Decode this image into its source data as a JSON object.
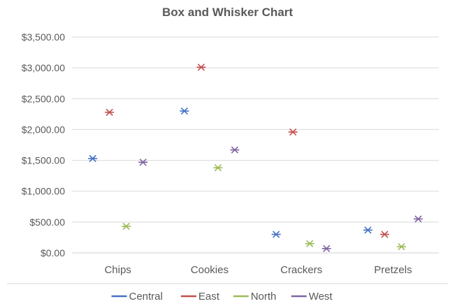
{
  "chart_data": {
    "type": "scatter",
    "title": "Box and Whisker Chart",
    "categories": [
      "Chips",
      "Cookies",
      "Crackers",
      "Pretzels"
    ],
    "ylim": [
      0,
      3500
    ],
    "yticks": [
      0,
      500,
      1000,
      1500,
      2000,
      2500,
      3000,
      3500
    ],
    "ytick_labels": [
      "$0.00",
      "$500.00",
      "$1,000.00",
      "$1,500.00",
      "$2,000.00",
      "$2,500.00",
      "$3,000.00",
      "$3,500.00"
    ],
    "grid": true,
    "legend_position": "bottom",
    "marker": "asterisk",
    "series": [
      {
        "name": "Central",
        "color": "#4472C4",
        "values": [
          1530,
          2300,
          300,
          370
        ]
      },
      {
        "name": "East",
        "color": "#C0504D",
        "values": [
          2280,
          3010,
          1960,
          300
        ]
      },
      {
        "name": "North",
        "color": "#9BBB59",
        "values": [
          430,
          1380,
          150,
          100
        ]
      },
      {
        "name": "West",
        "color": "#8064A2",
        "values": [
          1470,
          1670,
          70,
          550
        ]
      }
    ]
  }
}
